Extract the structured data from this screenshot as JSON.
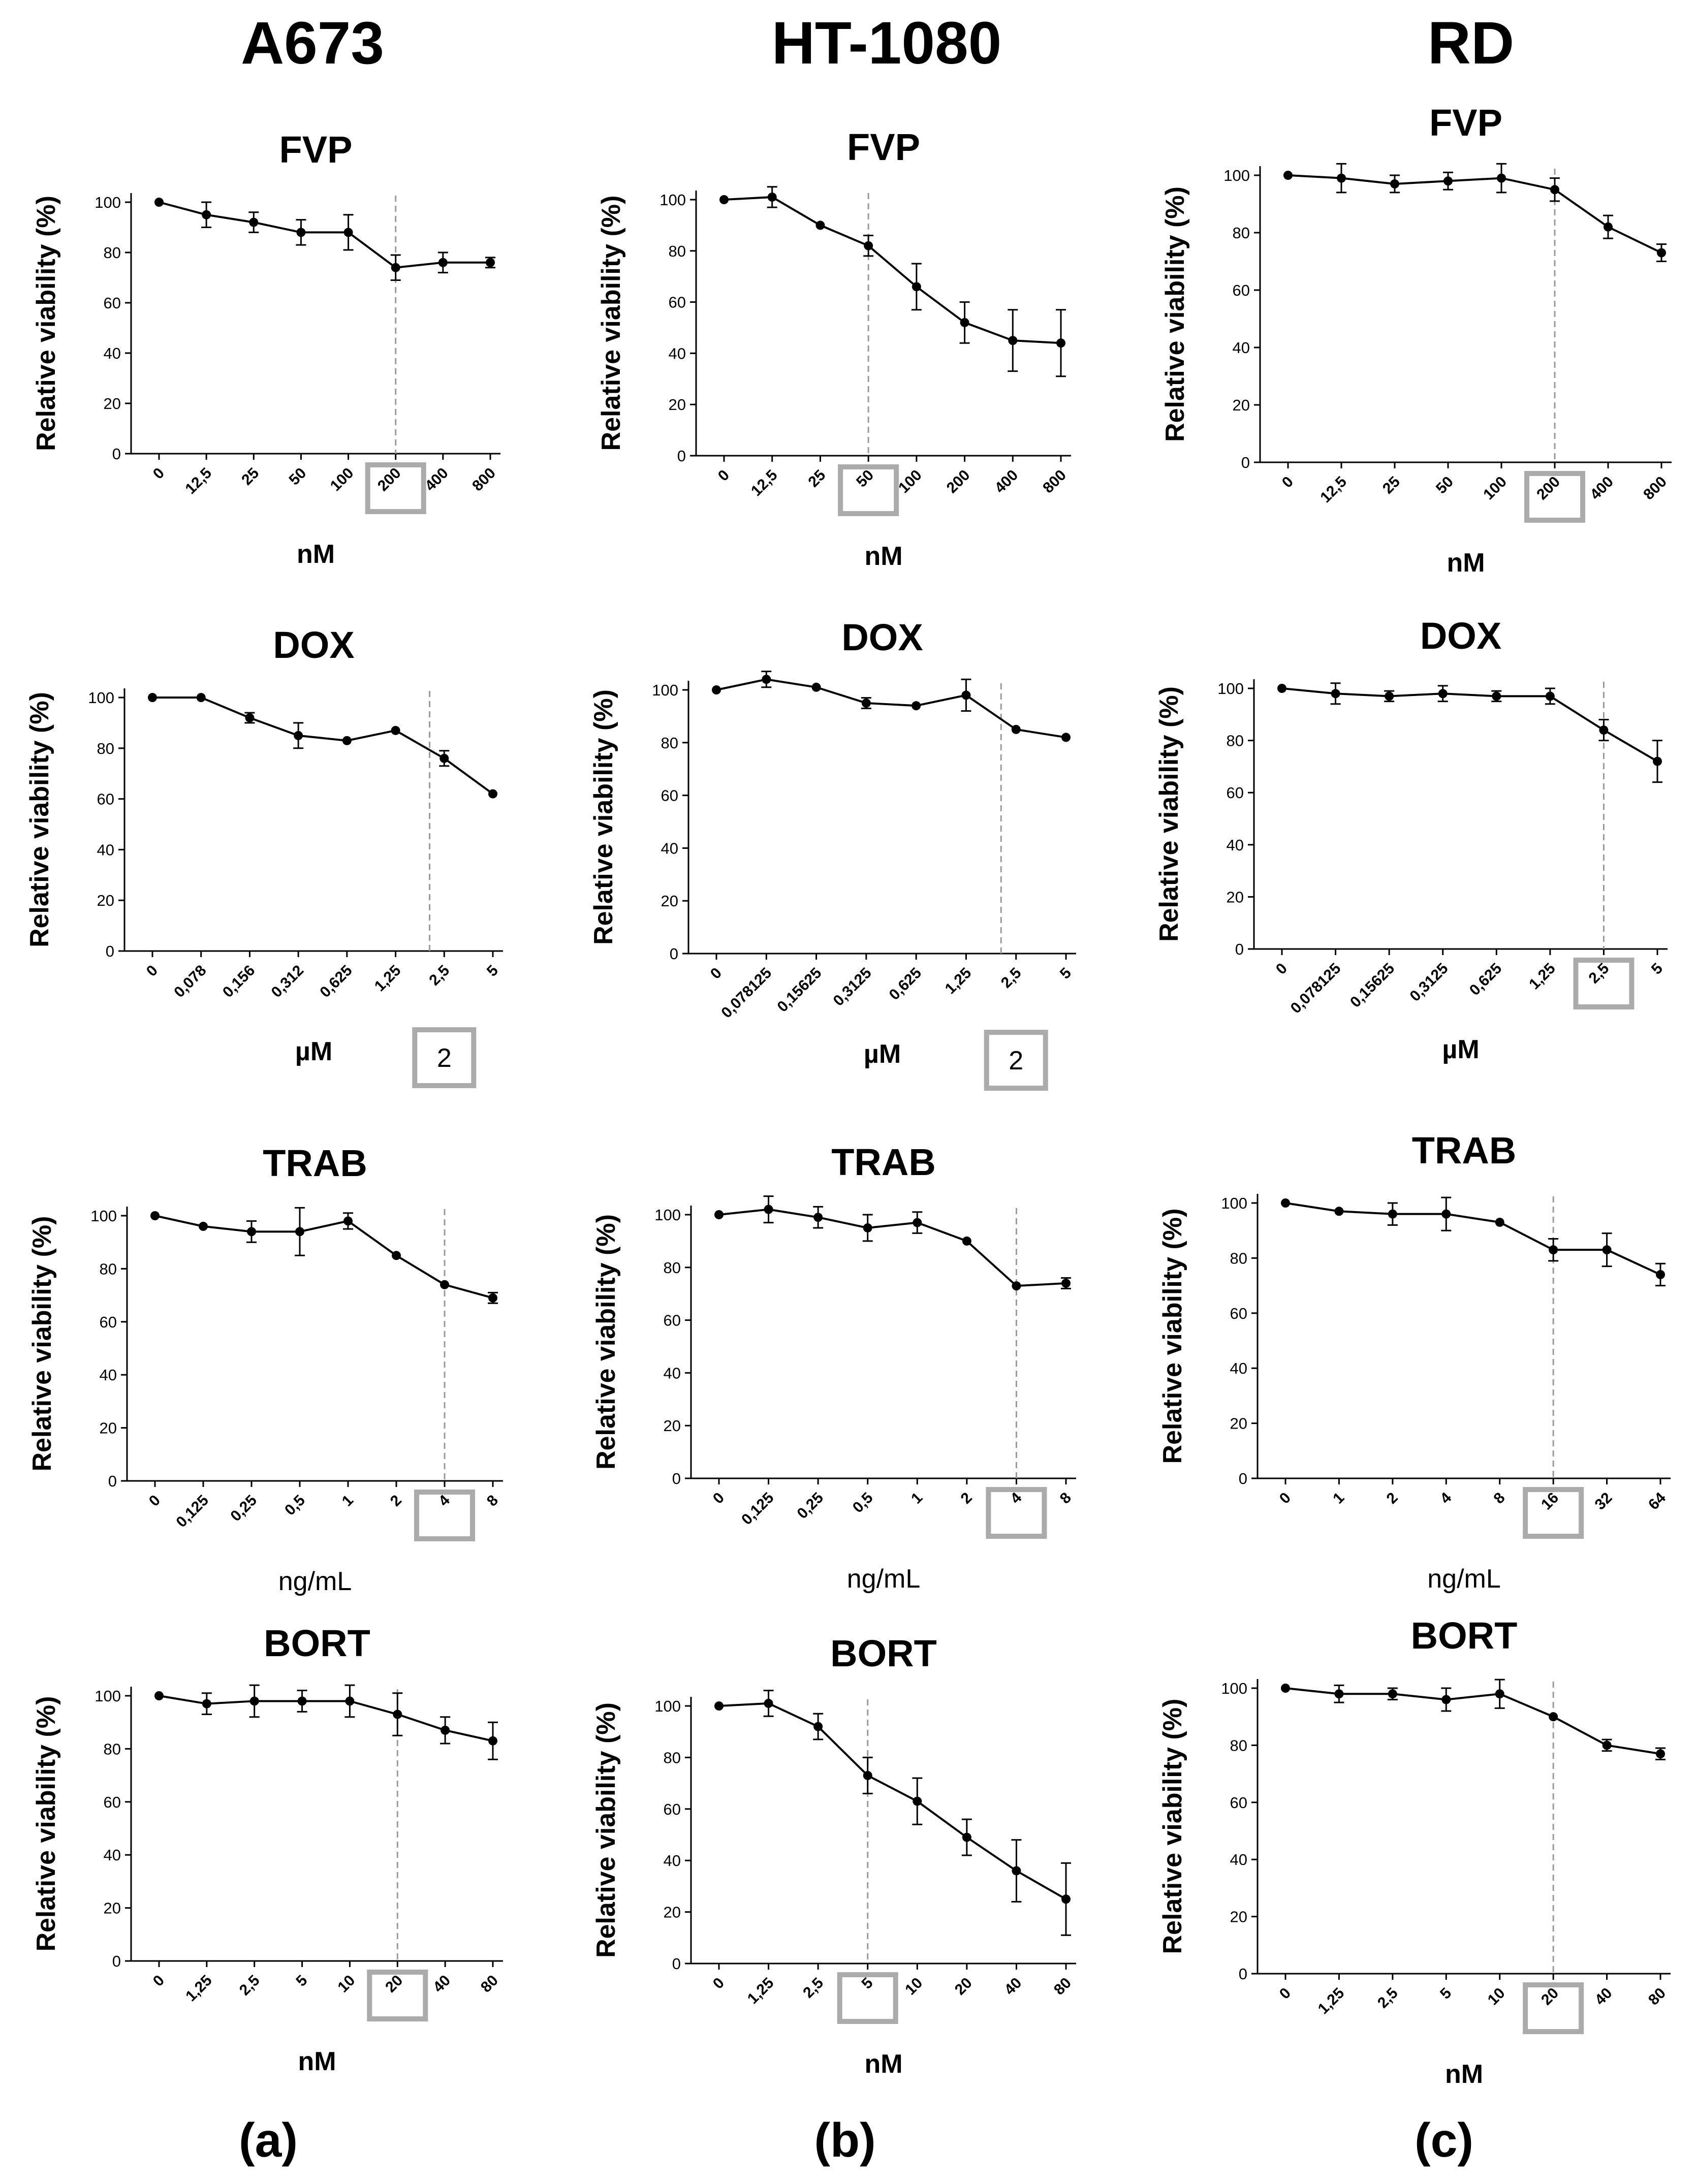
{
  "columns": [
    {
      "cell_line": "A673",
      "panel_label": "(a)"
    },
    {
      "cell_line": "HT-1080",
      "panel_label": "(b)"
    },
    {
      "cell_line": "RD",
      "panel_label": "(c)"
    }
  ],
  "colors": {
    "line": "#000000",
    "ic_line": "#9a9a9a",
    "highlight_box": "#ababab",
    "text": "#000000"
  },
  "chart_data": [
    {
      "id": "a673-fvp",
      "type": "line",
      "title": "FVP",
      "ylabel": "Relative viability (%)",
      "xlabel": "nM",
      "ylim": [
        0,
        100
      ],
      "yticks": [
        0,
        20,
        40,
        60,
        80,
        100
      ],
      "categories": [
        "0",
        "12,5",
        "25",
        "50",
        "100",
        "200",
        "400",
        "800"
      ],
      "values": [
        100,
        95,
        92,
        88,
        88,
        74,
        76,
        76
      ],
      "errors": [
        1,
        5,
        4,
        5,
        7,
        5,
        4,
        2
      ],
      "ic_index": 5,
      "highlight": {
        "type": "tick",
        "index": 5
      }
    },
    {
      "id": "ht1080-fvp",
      "type": "line",
      "title": "FVP",
      "ylabel": "Relative viability (%)",
      "xlabel": "nM",
      "ylim": [
        0,
        100
      ],
      "yticks": [
        0,
        20,
        40,
        60,
        80,
        100
      ],
      "categories": [
        "0",
        "12,5",
        "25",
        "50",
        "100",
        "200",
        "400",
        "800"
      ],
      "values": [
        100,
        101,
        90,
        82,
        66,
        52,
        45,
        44
      ],
      "errors": [
        1,
        4,
        1,
        4,
        9,
        8,
        12,
        13
      ],
      "ic_index": 3,
      "highlight": {
        "type": "tick",
        "index": 3
      }
    },
    {
      "id": "rd-fvp",
      "type": "line",
      "title": "FVP",
      "ylabel": "Relative viability (%)",
      "xlabel": "nM",
      "ylim": [
        0,
        100
      ],
      "yticks": [
        0,
        20,
        40,
        60,
        80,
        100
      ],
      "categories": [
        "0",
        "12,5",
        "25",
        "50",
        "100",
        "200",
        "400",
        "800"
      ],
      "values": [
        100,
        99,
        97,
        98,
        99,
        95,
        82,
        73
      ],
      "errors": [
        1,
        5,
        3,
        3,
        5,
        4,
        4,
        3
      ],
      "ic_index": 5,
      "highlight": {
        "type": "tick",
        "index": 5
      }
    },
    {
      "id": "a673-dox",
      "type": "line",
      "title": "DOX",
      "ylabel": "Relative viability (%)",
      "xlabel": "µM",
      "ylim": [
        0,
        100
      ],
      "yticks": [
        0,
        20,
        40,
        60,
        80,
        100
      ],
      "categories": [
        "0",
        "0,078",
        "0,156",
        "0,312",
        "0,625",
        "1,25",
        "2,5",
        "5"
      ],
      "values": [
        100,
        100,
        92,
        85,
        83,
        87,
        76,
        62
      ],
      "errors": [
        1,
        1,
        2,
        5,
        1,
        1,
        3,
        1
      ],
      "ic_index": 5.7,
      "highlight": {
        "type": "label",
        "index": 6,
        "text": "2"
      }
    },
    {
      "id": "ht1080-dox",
      "type": "line",
      "title": "DOX",
      "ylabel": "Relative viability (%)",
      "xlabel": "µM",
      "ylim": [
        0,
        100
      ],
      "yticks": [
        0,
        20,
        40,
        60,
        80,
        100
      ],
      "categories": [
        "0",
        "0,078125",
        "0,15625",
        "0,3125",
        "0,625",
        "1,25",
        "2,5",
        "5"
      ],
      "values": [
        100,
        104,
        101,
        95,
        94,
        98,
        85,
        82
      ],
      "errors": [
        1,
        3,
        1,
        2,
        1,
        6,
        1,
        1
      ],
      "ic_index": 5.7,
      "highlight": {
        "type": "label",
        "index": 6,
        "text": "2"
      }
    },
    {
      "id": "rd-dox",
      "type": "line",
      "title": "DOX",
      "ylabel": "Relative viability (%)",
      "xlabel": "µM",
      "ylim": [
        0,
        100
      ],
      "yticks": [
        0,
        20,
        40,
        60,
        80,
        100
      ],
      "categories": [
        "0",
        "0,078125",
        "0,15625",
        "0,3125",
        "0,625",
        "1,25",
        "2,5",
        "5"
      ],
      "values": [
        100,
        98,
        97,
        98,
        97,
        97,
        84,
        72
      ],
      "errors": [
        1,
        4,
        2,
        3,
        2,
        3,
        4,
        8
      ],
      "ic_index": 6,
      "highlight": {
        "type": "tick",
        "index": 6
      }
    },
    {
      "id": "a673-trab",
      "type": "line",
      "title": "TRAB",
      "ylabel": "Relative viability (%)",
      "xlabel": "ng/mL",
      "ylim": [
        0,
        100
      ],
      "yticks": [
        0,
        20,
        40,
        60,
        80,
        100
      ],
      "categories": [
        "0",
        "0,125",
        "0,25",
        "0,5",
        "1",
        "2",
        "4",
        "8"
      ],
      "values": [
        100,
        96,
        94,
        94,
        98,
        85,
        74,
        69
      ],
      "errors": [
        1,
        1,
        4,
        9,
        3,
        1,
        1,
        2
      ],
      "ic_index": 6,
      "highlight": {
        "type": "tick",
        "index": 6
      }
    },
    {
      "id": "ht1080-trab",
      "type": "line",
      "title": "TRAB",
      "ylabel": "Relative viability (%)",
      "xlabel": "ng/mL",
      "ylim": [
        0,
        100
      ],
      "yticks": [
        0,
        20,
        40,
        60,
        80,
        100
      ],
      "categories": [
        "0",
        "0,125",
        "0,25",
        "0,5",
        "1",
        "2",
        "4",
        "8"
      ],
      "values": [
        100,
        102,
        99,
        95,
        97,
        90,
        73,
        74
      ],
      "errors": [
        1,
        5,
        4,
        5,
        4,
        1,
        1,
        2
      ],
      "ic_index": 6,
      "highlight": {
        "type": "tick",
        "index": 6
      }
    },
    {
      "id": "rd-trab",
      "type": "line",
      "title": "TRAB",
      "ylabel": "Relative viability (%)",
      "xlabel": "ng/mL",
      "ylim": [
        0,
        100
      ],
      "yticks": [
        0,
        20,
        40,
        60,
        80,
        100
      ],
      "categories": [
        "0",
        "1",
        "2",
        "4",
        "8",
        "16",
        "32",
        "64"
      ],
      "values": [
        100,
        97,
        96,
        96,
        93,
        83,
        83,
        74
      ],
      "errors": [
        1,
        1,
        4,
        6,
        1,
        4,
        6,
        4
      ],
      "ic_index": 5,
      "highlight": {
        "type": "tick",
        "index": 5
      }
    },
    {
      "id": "a673-bort",
      "type": "line",
      "title": "BORT",
      "ylabel": "Relative viability (%)",
      "xlabel": "nM",
      "ylim": [
        0,
        100
      ],
      "yticks": [
        0,
        20,
        40,
        60,
        80,
        100
      ],
      "categories": [
        "0",
        "1,25",
        "2,5",
        "5",
        "10",
        "20",
        "40",
        "80"
      ],
      "values": [
        100,
        97,
        98,
        98,
        98,
        93,
        87,
        83
      ],
      "errors": [
        1,
        4,
        6,
        4,
        6,
        8,
        5,
        7
      ],
      "ic_index": 5,
      "highlight": {
        "type": "tick",
        "index": 5
      }
    },
    {
      "id": "ht1080-bort",
      "type": "line",
      "title": "BORT",
      "ylabel": "Relative viability (%)",
      "xlabel": "nM",
      "ylim": [
        0,
        100
      ],
      "yticks": [
        0,
        20,
        40,
        60,
        80,
        100
      ],
      "categories": [
        "0",
        "1,25",
        "2,5",
        "5",
        "10",
        "20",
        "40",
        "80"
      ],
      "values": [
        100,
        101,
        92,
        73,
        63,
        49,
        36,
        25
      ],
      "errors": [
        1,
        5,
        5,
        7,
        9,
        7,
        12,
        14
      ],
      "ic_index": 3,
      "highlight": {
        "type": "tick",
        "index": 3
      }
    },
    {
      "id": "rd-bort",
      "type": "line",
      "title": "BORT",
      "ylabel": "Relative viability (%)",
      "xlabel": "nM",
      "ylim": [
        0,
        100
      ],
      "yticks": [
        0,
        20,
        40,
        60,
        80,
        100
      ],
      "categories": [
        "0",
        "1,25",
        "2,5",
        "5",
        "10",
        "20",
        "40",
        "80"
      ],
      "values": [
        100,
        98,
        98,
        96,
        98,
        90,
        80,
        77
      ],
      "errors": [
        1,
        3,
        2,
        4,
        5,
        1,
        2,
        2
      ],
      "ic_index": 5,
      "highlight": {
        "type": "tick",
        "index": 5
      }
    }
  ]
}
